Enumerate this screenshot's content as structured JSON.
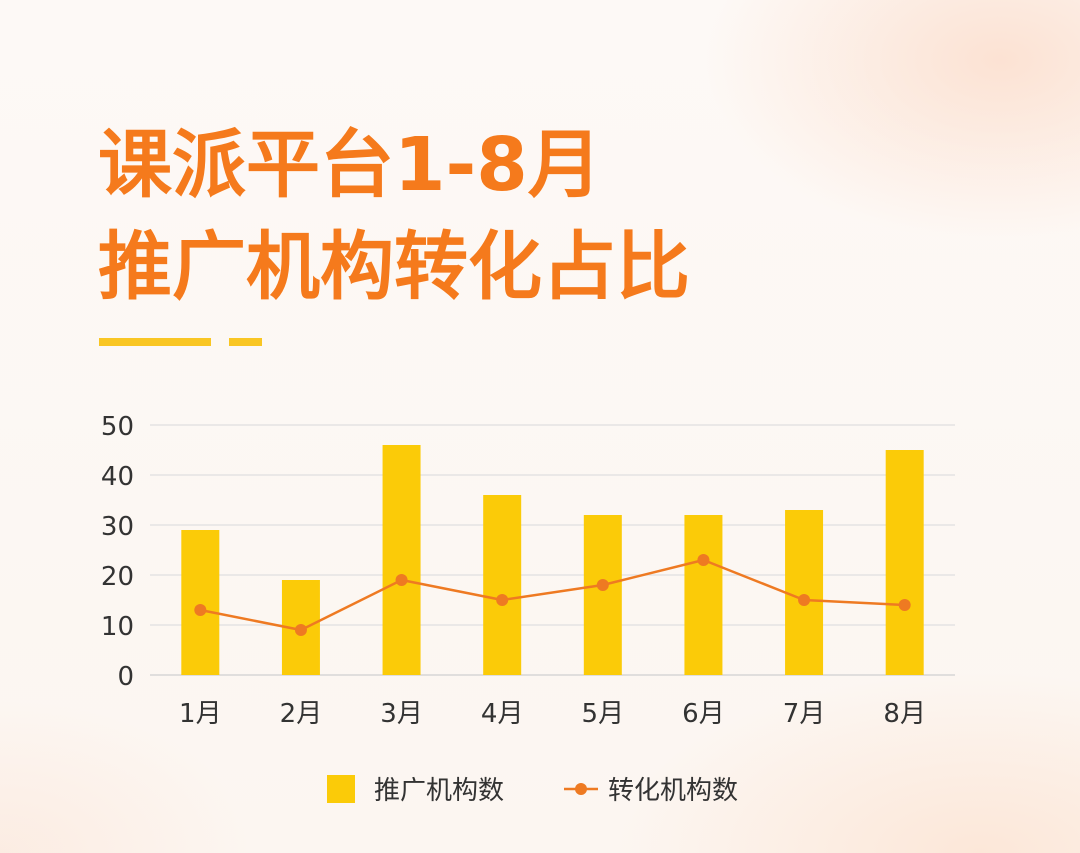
{
  "colors": {
    "title": "#f57a1c",
    "bar": "#fbcb08",
    "line": "#ee7a22",
    "accent": "#f9c623",
    "axis_text": "#333333",
    "grid": "#e3e3e3"
  },
  "title": {
    "line1": "课派平台1-8月",
    "line2": "推广机构转化占比"
  },
  "chart_data": {
    "type": "bar",
    "categories": [
      "1月",
      "2月",
      "3月",
      "4月",
      "5月",
      "6月",
      "7月",
      "8月"
    ],
    "series": [
      {
        "name": "推广机构数",
        "type": "bar",
        "values": [
          29,
          19,
          46,
          36,
          32,
          32,
          33,
          45
        ]
      },
      {
        "name": "转化机构数",
        "type": "line",
        "values": [
          13,
          9,
          19,
          15,
          18,
          23,
          15,
          14
        ]
      }
    ],
    "ylim": [
      0,
      50
    ],
    "yticks": [
      0,
      10,
      20,
      30,
      40,
      50
    ],
    "grid": true,
    "legend": "bottom-center"
  }
}
